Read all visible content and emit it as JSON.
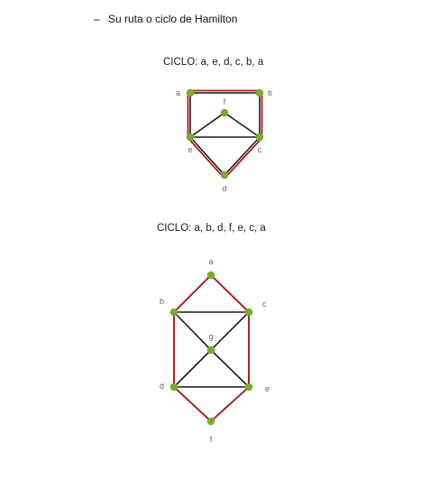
{
  "heading": {
    "dash": "–",
    "text": "Su ruta o ciclo de Hamilton"
  },
  "graph1": {
    "caption": "CICLO: a, e, d, c, b, a",
    "vertices": [
      {
        "id": "a",
        "label": "a"
      },
      {
        "id": "b",
        "label": "b"
      },
      {
        "id": "f",
        "label": "f"
      },
      {
        "id": "e",
        "label": "e"
      },
      {
        "id": "c",
        "label": "c"
      },
      {
        "id": "d",
        "label": "d"
      }
    ],
    "edges": [
      [
        "a",
        "b"
      ],
      [
        "b",
        "c"
      ],
      [
        "a",
        "e"
      ],
      [
        "e",
        "f"
      ],
      [
        "f",
        "c"
      ],
      [
        "e",
        "c"
      ],
      [
        "e",
        "d"
      ],
      [
        "d",
        "c"
      ]
    ],
    "cycle": [
      "a",
      "e",
      "d",
      "c",
      "b",
      "a"
    ]
  },
  "graph2": {
    "caption": "CICLO: a, b, d, f, e, c, a",
    "vertices": [
      {
        "id": "a",
        "label": "a"
      },
      {
        "id": "b",
        "label": "b"
      },
      {
        "id": "c",
        "label": "c"
      },
      {
        "id": "g",
        "label": "g"
      },
      {
        "id": "d",
        "label": "d"
      },
      {
        "id": "e",
        "label": "e"
      },
      {
        "id": "f",
        "label": "f"
      }
    ],
    "edges": [
      [
        "a",
        "b"
      ],
      [
        "a",
        "c"
      ],
      [
        "b",
        "c"
      ],
      [
        "b",
        "d"
      ],
      [
        "c",
        "e"
      ],
      [
        "b",
        "g"
      ],
      [
        "c",
        "g"
      ],
      [
        "g",
        "d"
      ],
      [
        "g",
        "e"
      ],
      [
        "d",
        "e"
      ],
      [
        "d",
        "f"
      ],
      [
        "e",
        "f"
      ]
    ],
    "cycle": [
      "a",
      "b",
      "d",
      "f",
      "e",
      "c",
      "a"
    ]
  },
  "colors": {
    "edge": "#1a1a1a",
    "cycle_edge": "#b01818",
    "vertex": "#7aab2a",
    "label": "#666666"
  }
}
